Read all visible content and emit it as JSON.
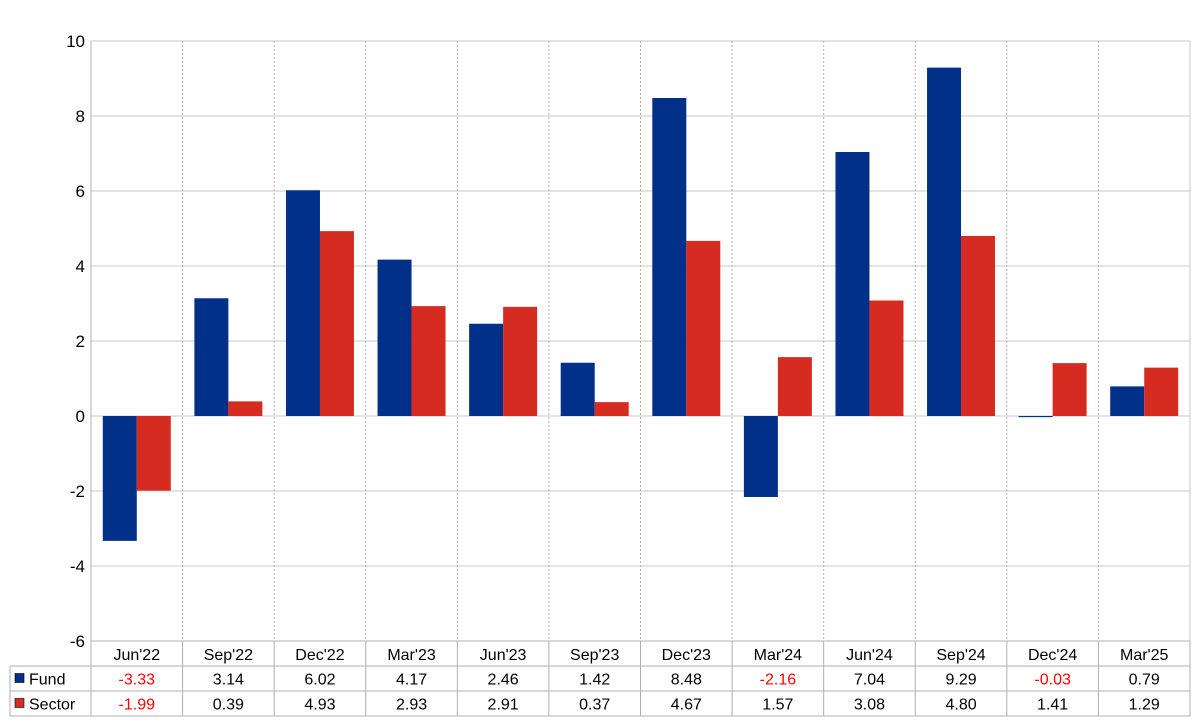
{
  "chart_data": {
    "type": "bar",
    "title": "",
    "xlabel": "",
    "ylabel": "",
    "categories": [
      "Jun'22",
      "Sep'22",
      "Dec'22",
      "Mar'23",
      "Jun'23",
      "Sep'23",
      "Dec'23",
      "Mar'24",
      "Jun'24",
      "Sep'24",
      "Dec'24",
      "Mar'25"
    ],
    "series": [
      {
        "name": "Fund",
        "color": "#003087",
        "values": [
          -3.33,
          3.14,
          6.02,
          4.17,
          2.46,
          1.42,
          8.48,
          -2.16,
          7.04,
          9.29,
          -0.03,
          0.79
        ],
        "labels": [
          "-3.33",
          "3.14",
          "6.02",
          "4.17",
          "2.46",
          "1.42",
          "8.48",
          "-2.16",
          "7.04",
          "9.29",
          "-0.03",
          "0.79"
        ]
      },
      {
        "name": "Sector",
        "color": "#d62b20",
        "values": [
          -1.99,
          0.39,
          4.93,
          2.93,
          2.91,
          0.37,
          4.67,
          1.57,
          3.08,
          4.8,
          1.41,
          1.29
        ],
        "labels": [
          "-1.99",
          "0.39",
          "4.93",
          "2.93",
          "2.91",
          "0.37",
          "4.67",
          "1.57",
          "3.08",
          "4.80",
          "1.41",
          "1.29"
        ]
      }
    ],
    "ylim": [
      -6,
      10
    ],
    "yticks": [
      -6,
      -4,
      -2,
      0,
      2,
      4,
      6,
      8,
      10
    ],
    "ytick_labels": [
      "-6",
      "-4",
      "-2",
      "0",
      "2",
      "4",
      "6",
      "8",
      "10"
    ],
    "grid": true,
    "negative_value_color": "#ff0000",
    "legend": "data-table-below"
  }
}
